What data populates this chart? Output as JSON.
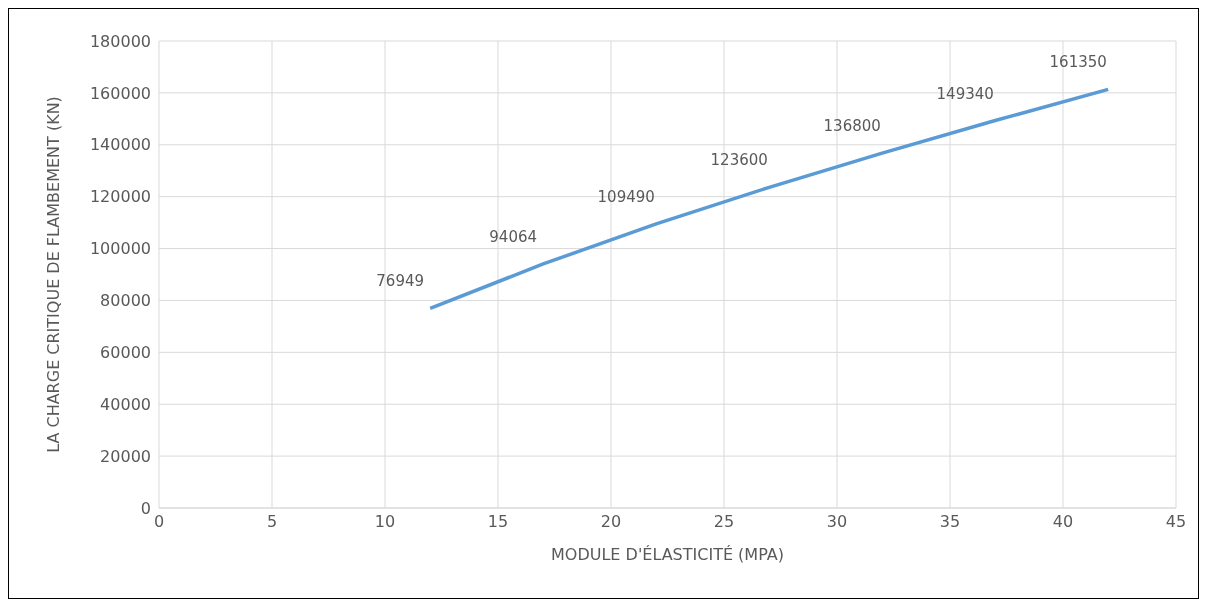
{
  "chart_data": {
    "type": "line",
    "xlabel": "MODULE D'ÉLASTICITÉ (MPA)",
    "ylabel": "LA CHARGE CRITIQUE DE FLAMBEMENT (KN)",
    "x": [
      12,
      17,
      22,
      27,
      32,
      37,
      42
    ],
    "series": [
      {
        "color": "#5b9bd5",
        "values": [
          76949,
          94064,
          109490,
          123600,
          136800,
          149340,
          161350
        ]
      }
    ],
    "xlim": [
      0,
      45
    ],
    "xticks": [
      0,
      5,
      10,
      15,
      20,
      25,
      30,
      35,
      40,
      45
    ],
    "ylim": [
      0,
      180000
    ],
    "yticks": [
      0,
      20000,
      40000,
      60000,
      80000,
      100000,
      120000,
      140000,
      160000,
      180000
    ],
    "grid": true,
    "marker": "none",
    "line_style": "solid",
    "data_labels": true
  }
}
